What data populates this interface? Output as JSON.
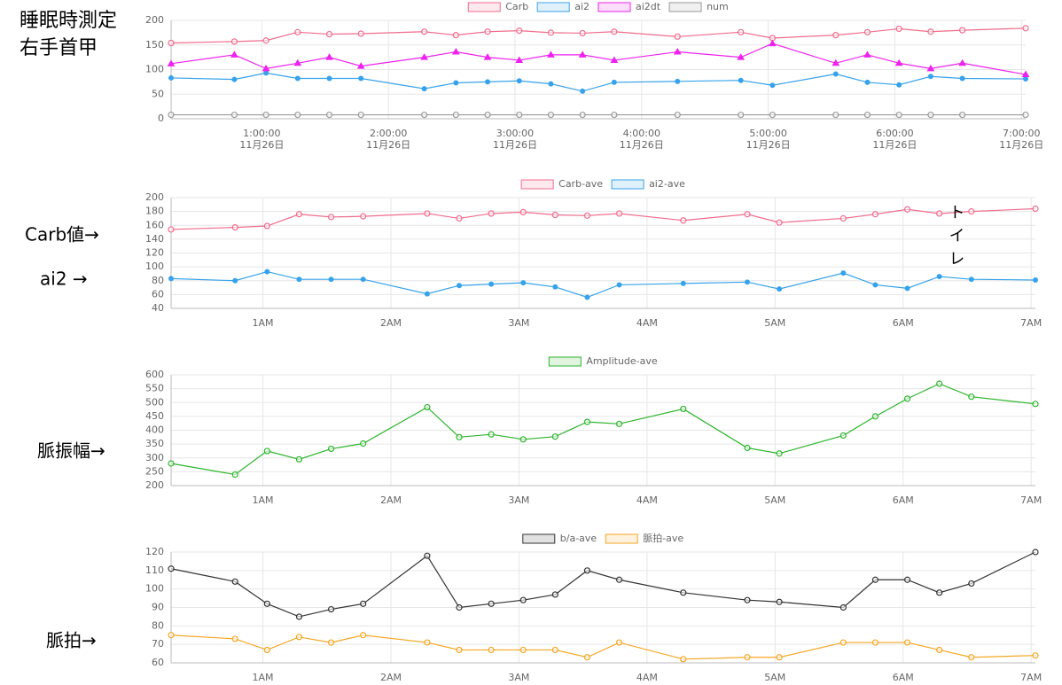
{
  "heading": [
    "睡眠時測定",
    "右手首甲"
  ],
  "chart_data": [
    {
      "type": "line",
      "grid": true,
      "x": [
        17,
        47,
        62,
        77,
        92,
        107,
        137,
        152,
        167,
        182,
        197,
        212,
        227,
        257,
        287,
        302,
        332,
        347,
        362,
        377,
        392,
        422
      ],
      "xlim": [
        17,
        422
      ],
      "xticks": [
        {
          "value": 60,
          "label": "1:00:00"
        },
        {
          "value": 120,
          "label": "2:00:00"
        },
        {
          "value": 180,
          "label": "3:00:00"
        },
        {
          "value": 240,
          "label": "4:00:00"
        },
        {
          "value": 300,
          "label": "5:00:00"
        },
        {
          "value": 360,
          "label": "6:00:00"
        },
        {
          "value": 420,
          "label": "7:00:00"
        }
      ],
      "xtick_sublabels": [
        "11月26日",
        "11月26日",
        "11月26日",
        "11月26日",
        "11月26日",
        "11月26日",
        "11月26日"
      ],
      "ylim": [
        0,
        200
      ],
      "yticks": [
        0,
        50,
        100,
        150,
        200
      ],
      "series": [
        {
          "name": "Carb",
          "color": "#f06c8c",
          "marker": "circle",
          "values": [
            154,
            157,
            159,
            176,
            172,
            173,
            177,
            170,
            177,
            179,
            175,
            174,
            177,
            167,
            176,
            164,
            170,
            176,
            183,
            177,
            180,
            184
          ]
        },
        {
          "name": "ai2",
          "color": "#36a2eb",
          "marker": "dot",
          "values": [
            83,
            80,
            93,
            82,
            82,
            82,
            61,
            73,
            75,
            77,
            71,
            56,
            74,
            76,
            78,
            68,
            91,
            74,
            69,
            86,
            82,
            81
          ]
        },
        {
          "name": "ai2dt",
          "color": "#ee22ee",
          "marker": "triangle",
          "values": [
            112,
            130,
            102,
            113,
            125,
            107,
            125,
            136,
            125,
            119,
            130,
            130,
            119,
            136,
            125,
            153,
            113,
            130,
            113,
            102,
            113,
            90
          ]
        },
        {
          "name": "num",
          "color": "#999999",
          "marker": "circle",
          "values": [
            8,
            8,
            8,
            8,
            8,
            8,
            8,
            8,
            8,
            8,
            8,
            8,
            8,
            8,
            8,
            8,
            8,
            8,
            8,
            8,
            8,
            8
          ]
        }
      ]
    },
    {
      "type": "line",
      "grid": true,
      "side_labels": [
        "Carb値→",
        "ai2 →"
      ],
      "annotation": "トイレ",
      "x": [
        17,
        47,
        62,
        77,
        92,
        107,
        137,
        152,
        167,
        182,
        197,
        212,
        227,
        257,
        287,
        302,
        332,
        347,
        362,
        377,
        392,
        422
      ],
      "xlim": [
        17,
        422
      ],
      "xticks": [
        {
          "value": 60,
          "label": "1AM"
        },
        {
          "value": 120,
          "label": "2AM"
        },
        {
          "value": 180,
          "label": "3AM"
        },
        {
          "value": 240,
          "label": "4AM"
        },
        {
          "value": 300,
          "label": "5AM"
        },
        {
          "value": 360,
          "label": "6AM"
        },
        {
          "value": 420,
          "label": "7AM"
        }
      ],
      "ylim": [
        40,
        200
      ],
      "yticks": [
        40,
        60,
        80,
        100,
        120,
        140,
        160,
        180,
        200
      ],
      "series": [
        {
          "name": "Carb-ave",
          "color": "#f06c8c",
          "marker": "circle",
          "values": [
            154,
            157,
            159,
            176,
            172,
            173,
            177,
            170,
            177,
            179,
            175,
            174,
            177,
            167,
            176,
            164,
            170,
            176,
            183,
            177,
            180,
            184
          ]
        },
        {
          "name": "ai2-ave",
          "color": "#36a2eb",
          "marker": "dot",
          "values": [
            83,
            80,
            93,
            82,
            82,
            82,
            61,
            73,
            75,
            77,
            71,
            56,
            74,
            76,
            78,
            68,
            91,
            74,
            69,
            86,
            82,
            81
          ]
        }
      ]
    },
    {
      "type": "line",
      "grid": true,
      "side_labels": [
        "脈振幅→"
      ],
      "x": [
        17,
        47,
        62,
        77,
        92,
        107,
        137,
        152,
        167,
        182,
        197,
        212,
        227,
        257,
        287,
        302,
        332,
        347,
        362,
        377,
        392,
        422
      ],
      "xlim": [
        17,
        422
      ],
      "xticks": [
        {
          "value": 60,
          "label": "1AM"
        },
        {
          "value": 120,
          "label": "2AM"
        },
        {
          "value": 180,
          "label": "3AM"
        },
        {
          "value": 240,
          "label": "4AM"
        },
        {
          "value": 300,
          "label": "5AM"
        },
        {
          "value": 360,
          "label": "6AM"
        },
        {
          "value": 420,
          "label": "7AM"
        }
      ],
      "ylim": [
        200,
        600
      ],
      "yticks": [
        200,
        250,
        300,
        350,
        400,
        450,
        500,
        550,
        600
      ],
      "series": [
        {
          "name": "Amplitude-ave",
          "color": "#2cb52c",
          "marker": "circle",
          "values": [
            280,
            240,
            325,
            295,
            333,
            352,
            483,
            375,
            385,
            367,
            377,
            430,
            423,
            477,
            336,
            316,
            381,
            450,
            514,
            568,
            521,
            495
          ]
        }
      ]
    },
    {
      "type": "line",
      "grid": true,
      "side_labels": [
        "脈拍→"
      ],
      "x": [
        17,
        47,
        62,
        77,
        92,
        107,
        137,
        152,
        167,
        182,
        197,
        212,
        227,
        257,
        287,
        302,
        332,
        347,
        362,
        377,
        392,
        422
      ],
      "xlim": [
        17,
        422
      ],
      "xticks": [
        {
          "value": 60,
          "label": "1AM"
        },
        {
          "value": 120,
          "label": "2AM"
        },
        {
          "value": 180,
          "label": "3AM"
        },
        {
          "value": 240,
          "label": "4AM"
        },
        {
          "value": 300,
          "label": "5AM"
        },
        {
          "value": 360,
          "label": "6AM"
        },
        {
          "value": 420,
          "label": "7AM"
        }
      ],
      "ylim": [
        60,
        120
      ],
      "yticks": [
        60,
        70,
        80,
        90,
        100,
        110,
        120
      ],
      "series": [
        {
          "name": "b/a-ave",
          "color": "#333333",
          "marker": "circle",
          "values": [
            111,
            104,
            92,
            85,
            89,
            92,
            118,
            90,
            92,
            94,
            97,
            110,
            105,
            98,
            94,
            93,
            90,
            105,
            105,
            98,
            103,
            120
          ]
        },
        {
          "name": "脈拍-ave",
          "color": "#f5a623",
          "marker": "circle",
          "values": [
            75,
            73,
            67,
            74,
            71,
            75,
            71,
            67,
            67,
            67,
            67,
            63,
            71,
            62,
            63,
            63,
            71,
            71,
            71,
            67,
            63,
            64
          ]
        }
      ]
    }
  ]
}
